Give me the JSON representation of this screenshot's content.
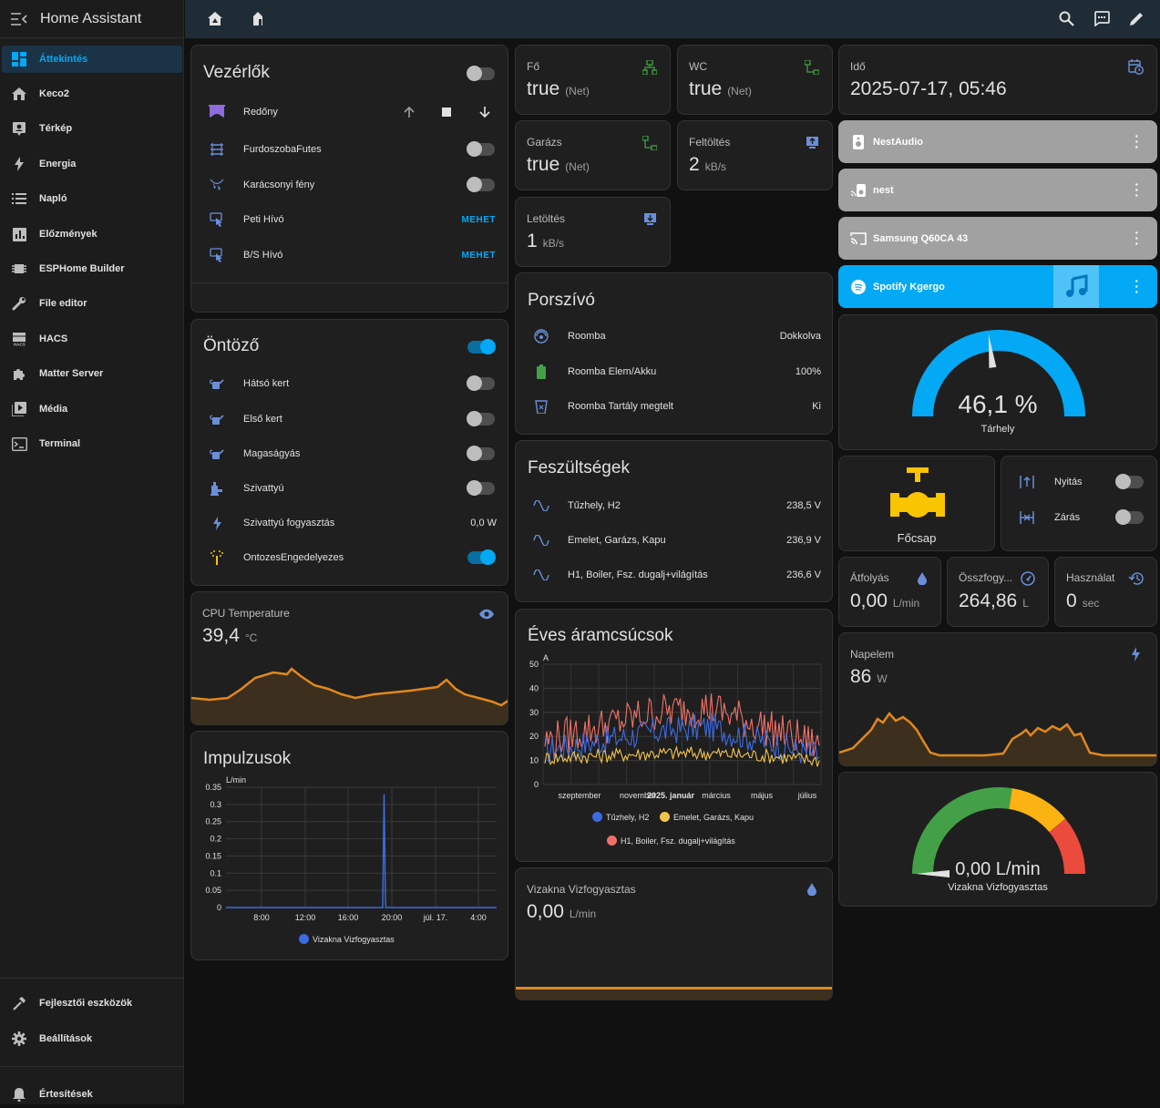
{
  "sidebar": {
    "title": "Home Assistant",
    "items": [
      {
        "label": "Áttekintés",
        "icon": "dashboard-icon"
      },
      {
        "label": "Keco2",
        "icon": "home-icon"
      },
      {
        "label": "Térkép",
        "icon": "map-account-icon"
      },
      {
        "label": "Energia",
        "icon": "lightning-icon"
      },
      {
        "label": "Napló",
        "icon": "list-icon"
      },
      {
        "label": "Előzmények",
        "icon": "chart-box-icon"
      },
      {
        "label": "ESPHome Builder",
        "icon": "chip-icon"
      },
      {
        "label": "File editor",
        "icon": "wrench-icon"
      },
      {
        "label": "HACS",
        "icon": "hacs-icon"
      },
      {
        "label": "Matter Server",
        "icon": "puzzle-icon"
      },
      {
        "label": "Média",
        "icon": "play-box-icon"
      },
      {
        "label": "Terminal",
        "icon": "console-icon"
      }
    ],
    "bottom": [
      {
        "label": "Fejlesztői eszközök",
        "icon": "hammer-icon"
      },
      {
        "label": "Beállítások",
        "icon": "gear-icon"
      },
      {
        "label": "Értesítések",
        "icon": "bell-icon"
      }
    ]
  },
  "vezerlok": {
    "title": "Vezérlők",
    "rows": [
      {
        "label": "Redőny"
      },
      {
        "label": "FurdoszobaFutes"
      },
      {
        "label": "Karácsonyi fény"
      },
      {
        "label": "Peti Hívó",
        "action": "MEHET"
      },
      {
        "label": "B/S Hívó",
        "action": "MEHET"
      }
    ]
  },
  "ontozo": {
    "title": "Öntöző",
    "rows": [
      {
        "label": "Hátsó kert"
      },
      {
        "label": "Első kert"
      },
      {
        "label": "Magaságyás"
      },
      {
        "label": "Szivattyú"
      },
      {
        "label": "Szivattyú fogyasztás",
        "value": "0,0 W"
      },
      {
        "label": "OntozesEngedelyezes"
      }
    ]
  },
  "cpu": {
    "name": "CPU Temperature",
    "value": "39,4",
    "unit": "°C"
  },
  "impulzusok": {
    "title": "Impulzusok",
    "unit": "L/min",
    "y_ticks": [
      "0.35",
      "0.3",
      "0.25",
      "0.2",
      "0.15",
      "0.1",
      "0.05",
      "0"
    ],
    "x_ticks": [
      "8:00",
      "12:00",
      "16:00",
      "20:00",
      "júl. 17.",
      "4:00"
    ],
    "legend": "Vizakna Vizfogyasztas"
  },
  "net": {
    "fo": {
      "name": "Fő",
      "value": "true",
      "unit": "(Net)"
    },
    "wc": {
      "name": "WC",
      "value": "true",
      "unit": "(Net)"
    },
    "garazs": {
      "name": "Garázs",
      "value": "true",
      "unit": "(Net)"
    },
    "feltoltes": {
      "name": "Feltöltés",
      "value": "2",
      "unit": "kB/s"
    },
    "letoltes": {
      "name": "Letöltés",
      "value": "1",
      "unit": "kB/s"
    }
  },
  "porszivo": {
    "title": "Porszívó",
    "rows": [
      {
        "label": "Roomba",
        "value": "Dokkolva"
      },
      {
        "label": "Roomba Elem/Akku",
        "value": "100%"
      },
      {
        "label": "Roomba Tartály megtelt",
        "value": "Ki"
      }
    ]
  },
  "feszultsegek": {
    "title": "Feszültségek",
    "rows": [
      {
        "label": "Tűzhely, H2",
        "value": "238,5 V"
      },
      {
        "label": "Emelet, Garázs, Kapu",
        "value": "236,9 V"
      },
      {
        "label": "H1, Boiler, Fsz. dugalj+világítás",
        "value": "236,6 V"
      }
    ]
  },
  "aramcsucsok": {
    "title": "Éves áramcsúcsok",
    "unit": "A",
    "y_ticks": [
      "50",
      "40",
      "30",
      "20",
      "10",
      "0"
    ],
    "x_ticks": [
      "szeptember",
      "november",
      "2025. január",
      "március",
      "május",
      "július"
    ],
    "legend": [
      "Tűzhely, H2",
      "Emelet, Garázs, Kapu",
      "H1, Boiler, Fsz. dugalj+világítás"
    ]
  },
  "vizakna": {
    "name": "Vizakna Vizfogyasztas",
    "value": "0,00",
    "unit": "L/min"
  },
  "ido": {
    "name": "Idő",
    "value": "2025-07-17, 05:46"
  },
  "media": [
    {
      "label": "NestAudio"
    },
    {
      "label": "nest"
    },
    {
      "label": "Samsung Q60CA 43"
    },
    {
      "label": "Spotify Kgergo"
    }
  ],
  "tarhely": {
    "value": "46,1 %",
    "label": "Tárhely",
    "fraction": 0.461
  },
  "focsap": {
    "label": "Főcsap",
    "rows": [
      {
        "label": "Nyitás"
      },
      {
        "label": "Zárás"
      }
    ]
  },
  "atfolyas": {
    "name": "Átfolyás",
    "value": "0,00",
    "unit": "L/min"
  },
  "osszfogy": {
    "name": "Összfogy...",
    "value": "264,86",
    "unit": "L"
  },
  "hasznalat": {
    "name": "Használat",
    "value": "0",
    "unit": "sec"
  },
  "napelem": {
    "name": "Napelem",
    "value": "86",
    "unit": "W"
  },
  "vizgauge": {
    "value": "0,00 L/min",
    "label": "Vizakna Vizfogyasztas",
    "fraction": 0.0
  },
  "colors": {
    "accent": "#03a9f4",
    "orange": "#e0881d",
    "blue": "#3e6ae1",
    "yellow": "#f3c44b",
    "red": "#f07167",
    "green": "#43a047"
  },
  "chart_data": [
    {
      "type": "line",
      "title": "Impulzusok",
      "ylabel": "L/min",
      "x": [
        "8:00",
        "12:00",
        "16:00",
        "20:00",
        "júl. 17.",
        "4:00"
      ],
      "series": [
        {
          "name": "Vizakna Vizfogyasztas",
          "values": [
            0,
            0,
            0,
            0.33,
            0,
            0
          ]
        }
      ],
      "ylim": [
        0,
        0.35
      ]
    },
    {
      "type": "line",
      "title": "Éves áramcsúcsok",
      "ylabel": "A",
      "x": [
        "szeptember",
        "november",
        "2025. január",
        "március",
        "május",
        "július"
      ],
      "series": [
        {
          "name": "Tűzhely, H2",
          "values": [
            14,
            18,
            22,
            24,
            18,
            12
          ]
        },
        {
          "name": "Emelet, Garázs, Kapu",
          "values": [
            11,
            12,
            13,
            13,
            12,
            10
          ]
        },
        {
          "name": "H1, Boiler, Fsz. dugalj+világítás",
          "values": [
            18,
            24,
            30,
            32,
            24,
            16
          ]
        }
      ],
      "ylim": [
        0,
        50
      ]
    }
  ]
}
